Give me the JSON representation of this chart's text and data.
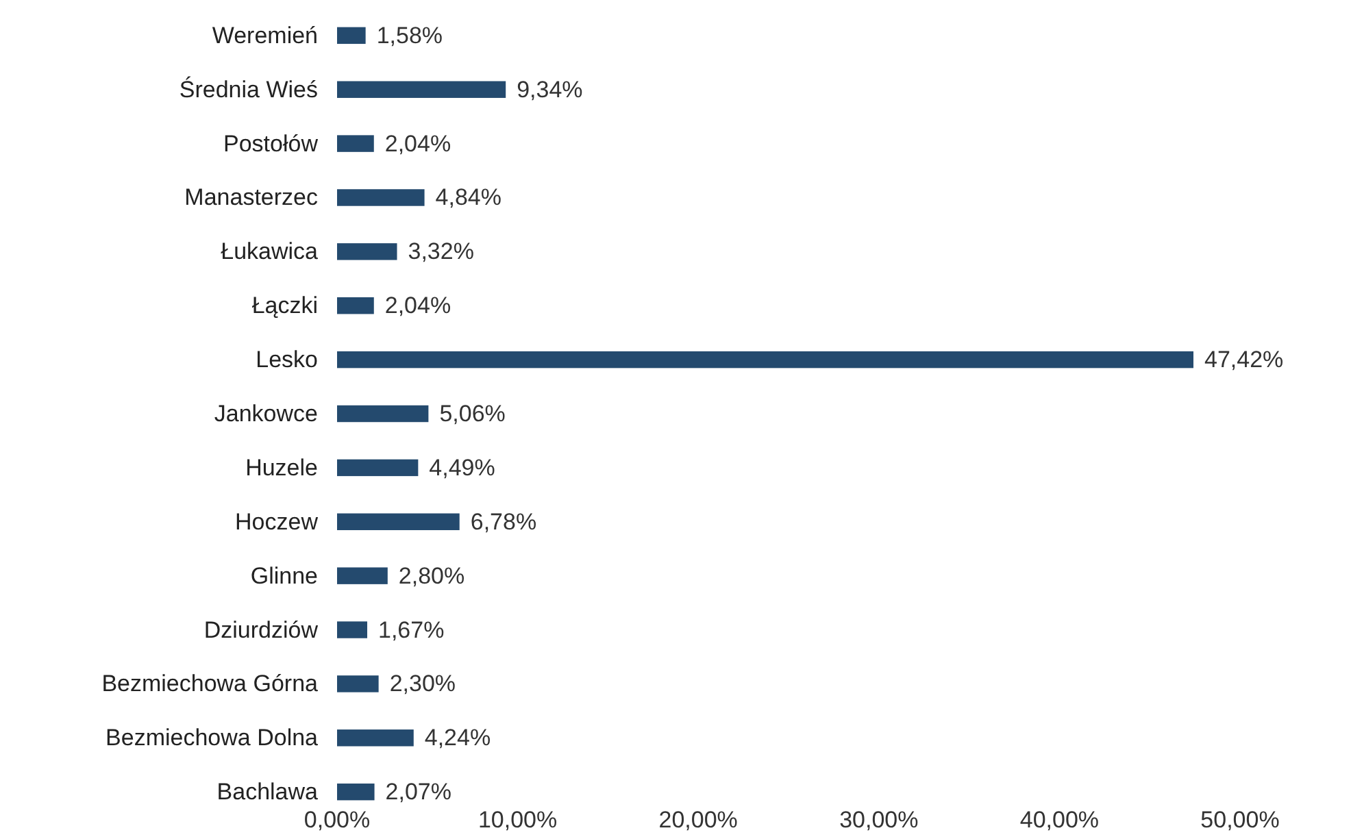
{
  "chart_data": {
    "type": "bar",
    "orientation": "horizontal",
    "categories": [
      "Weremień",
      "Średnia Wieś",
      "Postołów",
      "Manasterzec",
      "Łukawica",
      "Łączki",
      "Lesko",
      "Jankowce",
      "Huzele",
      "Hoczew",
      "Glinne",
      "Dziurdziów",
      "Bezmiechowa Górna",
      "Bezmiechowa Dolna",
      "Bachlawa"
    ],
    "values": [
      1.58,
      9.34,
      2.04,
      4.84,
      3.32,
      2.04,
      47.42,
      5.06,
      4.49,
      6.78,
      2.8,
      1.67,
      2.3,
      4.24,
      2.07
    ],
    "value_labels": [
      "1,58%",
      "9,34%",
      "2,04%",
      "4,84%",
      "3,32%",
      "2,04%",
      "47,42%",
      "5,06%",
      "4,49%",
      "6,78%",
      "2,80%",
      "1,67%",
      "2,30%",
      "4,24%",
      "2,07%"
    ],
    "color": "#244a6e",
    "xlim": [
      0,
      50
    ],
    "xticks": [
      {
        "value": 0,
        "label": "0,00%"
      },
      {
        "value": 10,
        "label": "10,00%"
      },
      {
        "value": 20,
        "label": "20,00%"
      },
      {
        "value": 30,
        "label": "30,00%"
      },
      {
        "value": 40,
        "label": "40,00%"
      },
      {
        "value": 50,
        "label": "50,00%"
      }
    ],
    "grid": false
  }
}
